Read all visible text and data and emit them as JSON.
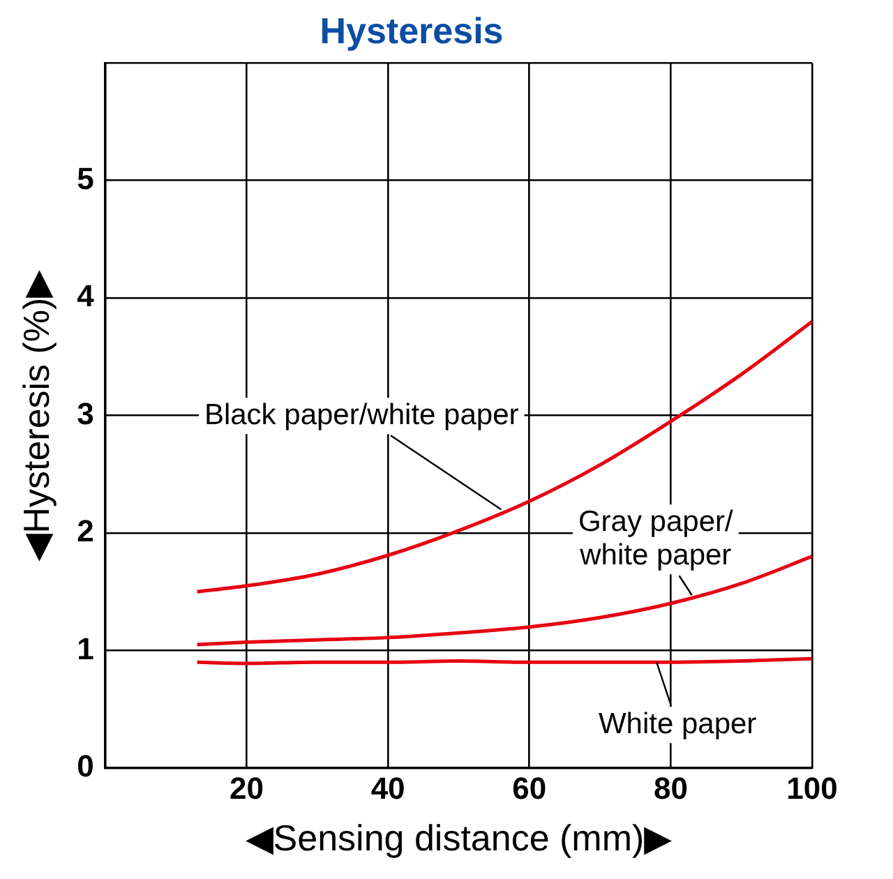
{
  "chart_data": {
    "type": "line",
    "title": "Hysteresis",
    "xlabel": "◀Sensing distance (mm)▶",
    "ylabel": "◀Hysteresis (%)▶",
    "xlim": [
      0,
      100
    ],
    "xticks": [
      {
        "value": 0,
        "label": null
      },
      20,
      40,
      60,
      80,
      100
    ],
    "ylim": [
      0,
      6
    ],
    "yticks": [
      0,
      1,
      2,
      3,
      4,
      5,
      {
        "value": 6,
        "label": null
      }
    ],
    "grid": true,
    "legend": false,
    "marker": "none",
    "line_style": "solid",
    "x": [
      13,
      20,
      30,
      40,
      50,
      60,
      70,
      80,
      90,
      100
    ],
    "series": [
      {
        "color": "#e60012",
        "values": [
          1.5,
          1.55,
          1.65,
          1.81,
          2.02,
          2.27,
          2.58,
          2.95,
          3.35,
          3.8
        ]
      },
      {
        "color": "#e60012",
        "values": [
          1.05,
          1.07,
          1.09,
          1.11,
          1.15,
          1.2,
          1.28,
          1.4,
          1.57,
          1.8
        ]
      },
      {
        "color": "#e60012",
        "values": [
          0.9,
          0.89,
          0.9,
          0.9,
          0.91,
          0.9,
          0.9,
          0.9,
          0.91,
          0.93
        ]
      }
    ],
    "annotations": [
      {
        "text": "Black paper/white paper",
        "x": 56,
        "y": 2.2
      },
      {
        "text": "Gray paper/\nwhite paper",
        "x": 83,
        "y": 1.47
      },
      {
        "text": "White paper",
        "x": 78,
        "y": 0.9
      }
    ]
  }
}
